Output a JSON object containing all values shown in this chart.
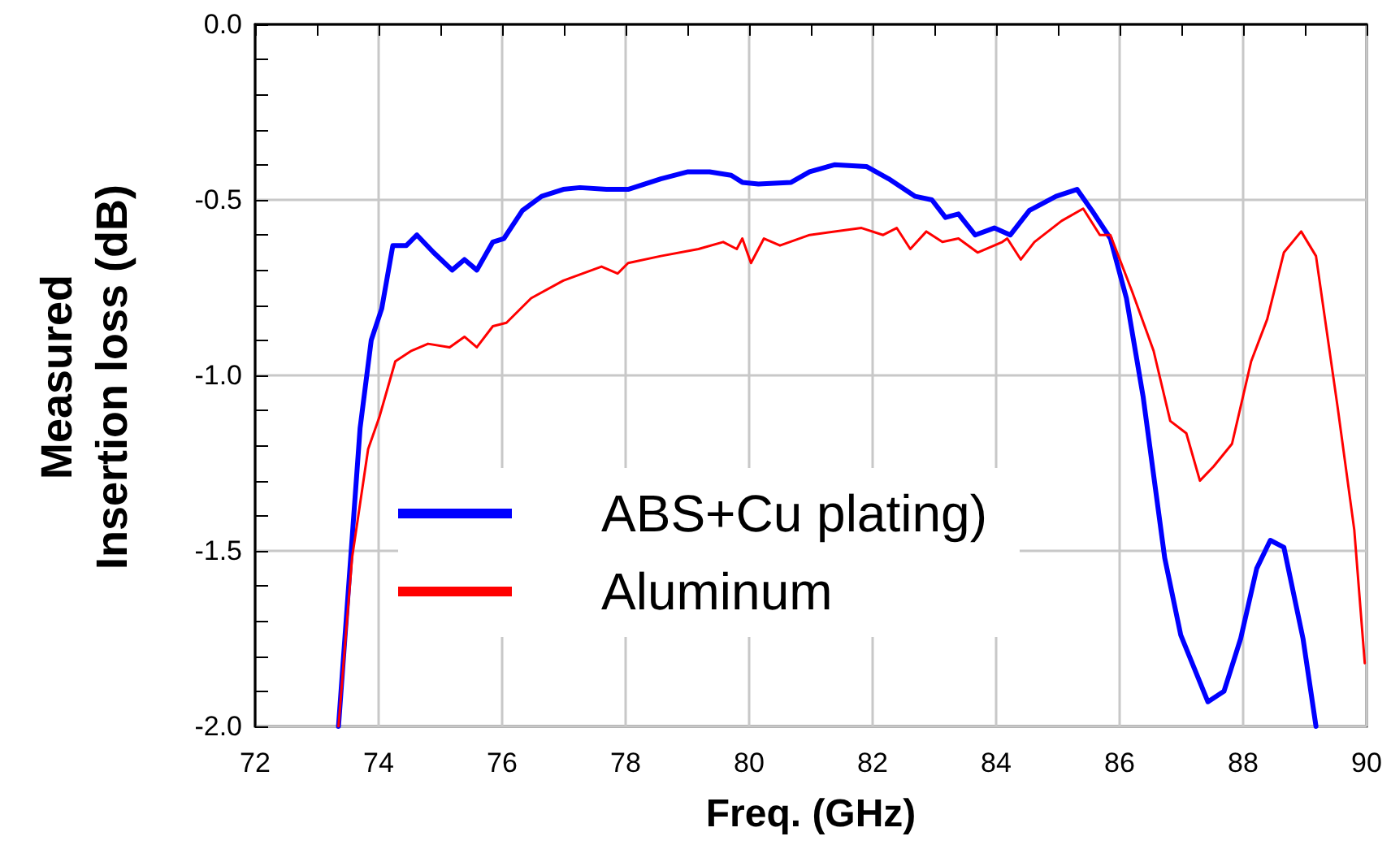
{
  "chart_data": {
    "type": "line",
    "xlabel": "Freq. (GHz)",
    "ylabel": "Measured\nInsertion loss (dB)",
    "xlim": [
      72,
      90
    ],
    "xticks": [
      72,
      74,
      76,
      78,
      80,
      82,
      84,
      86,
      88,
      90
    ],
    "ylim": [
      -2,
      0
    ],
    "yticks": [
      {
        "value": -2,
        "label": "-2.0"
      },
      {
        "value": -1.5,
        "label": "-1.5"
      },
      {
        "value": -1,
        "label": "-1.0"
      },
      {
        "value": -0.5,
        "label": "-0.5"
      },
      {
        "value": 0,
        "label": "0.0"
      }
    ],
    "grid": true,
    "legend": "bottom left",
    "marker": "none",
    "line_style": "solid",
    "series": [
      {
        "name": "ABS+Cu plating)",
        "color": "#0000ff",
        "x": [
          73.35,
          73.7,
          73.88,
          74.05,
          74.23,
          74.45,
          74.62,
          74.89,
          75.19,
          75.39,
          75.59,
          75.85,
          76.03,
          76.33,
          76.64,
          76.99,
          77.26,
          77.69,
          78.04,
          78.57,
          79.01,
          79.36,
          79.71,
          79.89,
          80.15,
          80.68,
          80.98,
          81.38,
          81.9,
          82.26,
          82.69,
          82.96,
          83.18,
          83.39,
          83.66,
          83.97,
          84.23,
          84.54,
          84.97,
          85.31,
          85.55,
          85.85,
          86.11,
          86.38,
          86.73,
          86.99,
          87.43,
          87.69,
          87.96,
          88.22,
          88.44,
          88.66,
          88.97,
          89.18
        ],
        "values": [
          -2.0,
          -1.15,
          -0.9,
          -0.81,
          -0.63,
          -0.63,
          -0.6,
          -0.65,
          -0.7,
          -0.67,
          -0.7,
          -0.62,
          -0.61,
          -0.53,
          -0.49,
          -0.47,
          -0.465,
          -0.47,
          -0.47,
          -0.44,
          -0.42,
          -0.42,
          -0.43,
          -0.45,
          -0.455,
          -0.45,
          -0.42,
          -0.4,
          -0.405,
          -0.44,
          -0.49,
          -0.5,
          -0.55,
          -0.54,
          -0.6,
          -0.58,
          -0.6,
          -0.53,
          -0.49,
          -0.47,
          -0.53,
          -0.61,
          -0.78,
          -1.06,
          -1.52,
          -1.74,
          -1.93,
          -1.9,
          -1.75,
          -1.55,
          -1.47,
          -1.49,
          -1.75,
          -2.0
        ]
      },
      {
        "name": "Aluminum",
        "color": "#ff0000",
        "x": [
          73.35,
          73.57,
          73.83,
          74.01,
          74.27,
          74.53,
          74.8,
          75.15,
          75.39,
          75.59,
          75.85,
          76.07,
          76.47,
          76.99,
          77.61,
          77.87,
          78.04,
          78.57,
          79.18,
          79.58,
          79.8,
          79.89,
          80.03,
          80.24,
          80.5,
          80.98,
          81.82,
          82.17,
          82.39,
          82.61,
          82.87,
          83.13,
          83.39,
          83.7,
          84.1,
          84.18,
          84.4,
          84.62,
          85.06,
          85.41,
          85.68,
          85.85,
          86.2,
          86.55,
          86.82,
          87.08,
          87.3,
          87.52,
          87.82,
          88.13,
          88.39,
          88.66,
          88.94,
          89.18,
          89.53,
          89.8,
          89.97
        ],
        "values": [
          -2.0,
          -1.52,
          -1.21,
          -1.12,
          -0.96,
          -0.93,
          -0.91,
          -0.92,
          -0.89,
          -0.92,
          -0.86,
          -0.85,
          -0.78,
          -0.73,
          -0.69,
          -0.71,
          -0.68,
          -0.66,
          -0.64,
          -0.62,
          -0.64,
          -0.61,
          -0.68,
          -0.61,
          -0.63,
          -0.6,
          -0.58,
          -0.6,
          -0.58,
          -0.64,
          -0.59,
          -0.62,
          -0.61,
          -0.65,
          -0.62,
          -0.61,
          -0.67,
          -0.62,
          -0.56,
          -0.525,
          -0.6,
          -0.6,
          -0.76,
          -0.93,
          -1.13,
          -1.165,
          -1.3,
          -1.26,
          -1.195,
          -0.96,
          -0.84,
          -0.65,
          -0.59,
          -0.66,
          -1.09,
          -1.44,
          -1.82
        ]
      }
    ]
  }
}
